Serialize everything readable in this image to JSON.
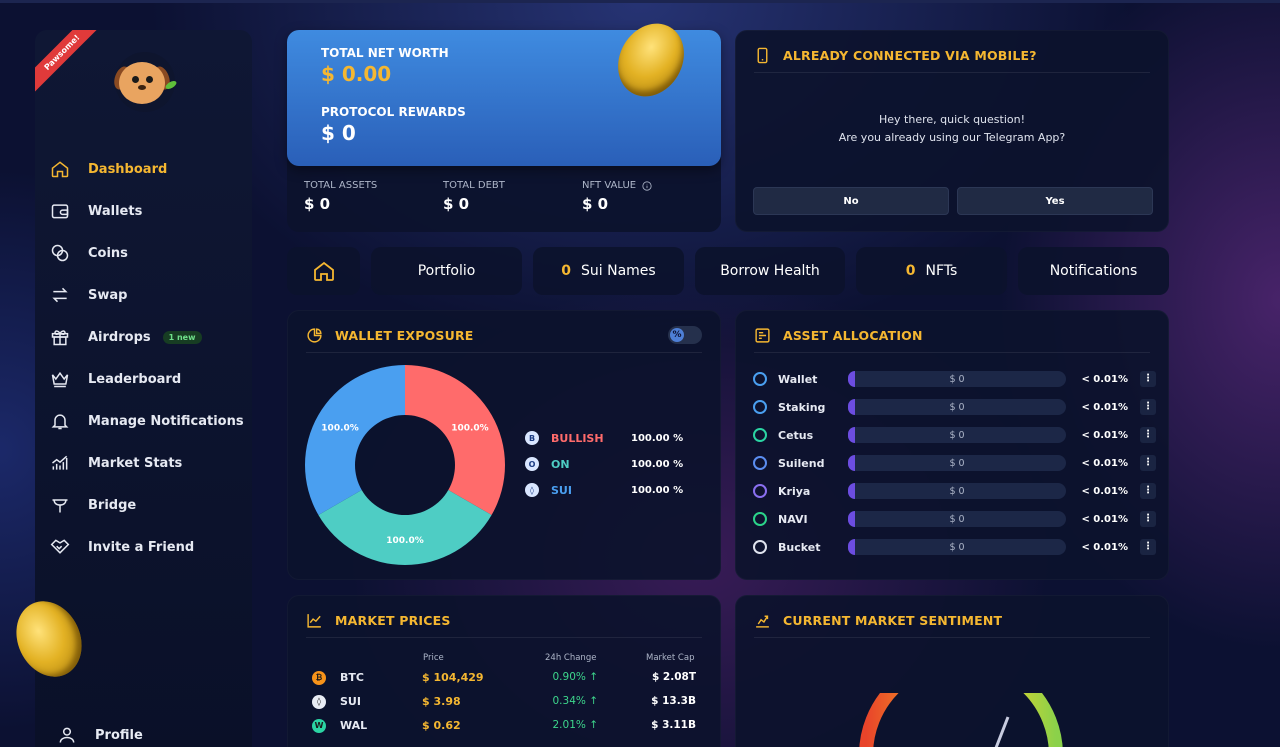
{
  "sidebar": {
    "ribbon": "Pawsome!",
    "items": [
      {
        "label": "Dashboard",
        "icon": "home-icon",
        "active": true
      },
      {
        "label": "Wallets",
        "icon": "wallet-icon"
      },
      {
        "label": "Coins",
        "icon": "coins-icon"
      },
      {
        "label": "Swap",
        "icon": "swap-icon"
      },
      {
        "label": "Airdrops",
        "icon": "gift-icon",
        "badge": "1 new"
      },
      {
        "label": "Leaderboard",
        "icon": "crown-icon"
      },
      {
        "label": "Manage Notifications",
        "icon": "bell-icon"
      },
      {
        "label": "Market Stats",
        "icon": "chart-icon"
      },
      {
        "label": "Bridge",
        "icon": "bridge-icon"
      },
      {
        "label": "Invite a Friend",
        "icon": "handshake-icon"
      }
    ],
    "profile": "Profile"
  },
  "networth": {
    "total_label": "TOTAL NET WORTH",
    "total_value": "$ 0.00",
    "rewards_label": "PROTOCOL REWARDS",
    "rewards_value": "$ 0",
    "assets_label": "TOTAL ASSETS",
    "assets_value": "$ 0",
    "debt_label": "TOTAL DEBT",
    "debt_value": "$ 0",
    "nft_label": "NFT VALUE",
    "nft_value": "$ 0"
  },
  "mobile": {
    "title": "ALREADY CONNECTED VIA MOBILE?",
    "line1": "Hey there, quick question!",
    "line2": "Are you already using our Telegram App?",
    "no": "No",
    "yes": "Yes"
  },
  "tabs": {
    "portfolio": "Portfolio",
    "sui_names_count": "0",
    "sui_names": "Sui Names",
    "borrow_health": "Borrow Health",
    "nfts_count": "0",
    "nfts": "NFTs",
    "notifications": "Notifications"
  },
  "exposure": {
    "title": "WALLET EXPOSURE",
    "toggle_symbol": "%",
    "slices": [
      {
        "label": "100.0%",
        "color": "#ff6b6b",
        "value": 1
      },
      {
        "label": "100.0%",
        "color": "#4ecdc4",
        "value": 1
      },
      {
        "label": "100.0%",
        "color": "#4a9ff0",
        "value": 1
      }
    ],
    "legend": [
      {
        "letter": "B",
        "name": "BULLISH",
        "pct": "100.00 %",
        "color": "#ff6b6b"
      },
      {
        "letter": "O",
        "name": "ON",
        "pct": "100.00 %",
        "color": "#4ecdc4"
      },
      {
        "letter": "◊",
        "name": "SUI",
        "pct": "100.00 %",
        "color": "#4a9ff0"
      }
    ]
  },
  "allocation": {
    "title": "ASSET ALLOCATION",
    "rows": [
      {
        "name": "Wallet",
        "value": "$ 0",
        "pct": "< 0.01%",
        "icon": "drop-icon",
        "color": "#4a9ff0"
      },
      {
        "name": "Staking",
        "value": "$ 0",
        "pct": "< 0.01%",
        "icon": "staking-icon",
        "color": "#4a9ff0"
      },
      {
        "name": "Cetus",
        "value": "$ 0",
        "pct": "< 0.01%",
        "icon": "cetus-icon",
        "color": "#2bd4a3"
      },
      {
        "name": "Suilend",
        "value": "$ 0",
        "pct": "< 0.01%",
        "icon": "suilend-icon",
        "color": "#5b8df0"
      },
      {
        "name": "Kriya",
        "value": "$ 0",
        "pct": "< 0.01%",
        "icon": "kriya-icon",
        "color": "#8a6ff0"
      },
      {
        "name": "NAVI",
        "value": "$ 0",
        "pct": "< 0.01%",
        "icon": "navi-icon",
        "color": "#2bd48a"
      },
      {
        "name": "Bucket",
        "value": "$ 0",
        "pct": "< 0.01%",
        "icon": "bucket-icon",
        "color": "#dfe3ee"
      }
    ],
    "menu_symbol": "⋮"
  },
  "market": {
    "title": "MARKET PRICES",
    "headers": {
      "price": "Price",
      "change": "24h Change",
      "cap": "Market Cap"
    },
    "rows": [
      {
        "symbol": "BTC",
        "price": "$ 104,429",
        "change": "0.90% ↑",
        "cap": "$ 2.08T",
        "color": "#f7931a",
        "glyph": "₿"
      },
      {
        "symbol": "SUI",
        "price": "$ 3.98",
        "change": "0.34% ↑",
        "cap": "$ 13.3B",
        "color": "#e8ecf4",
        "glyph": "◊"
      },
      {
        "symbol": "WAL",
        "price": "$ 0.62",
        "change": "2.01% ↑",
        "cap": "$ 3.11B",
        "color": "#2bd4a3",
        "glyph": "W"
      }
    ]
  },
  "sentiment": {
    "title": "CURRENT MARKET SENTIMENT"
  }
}
